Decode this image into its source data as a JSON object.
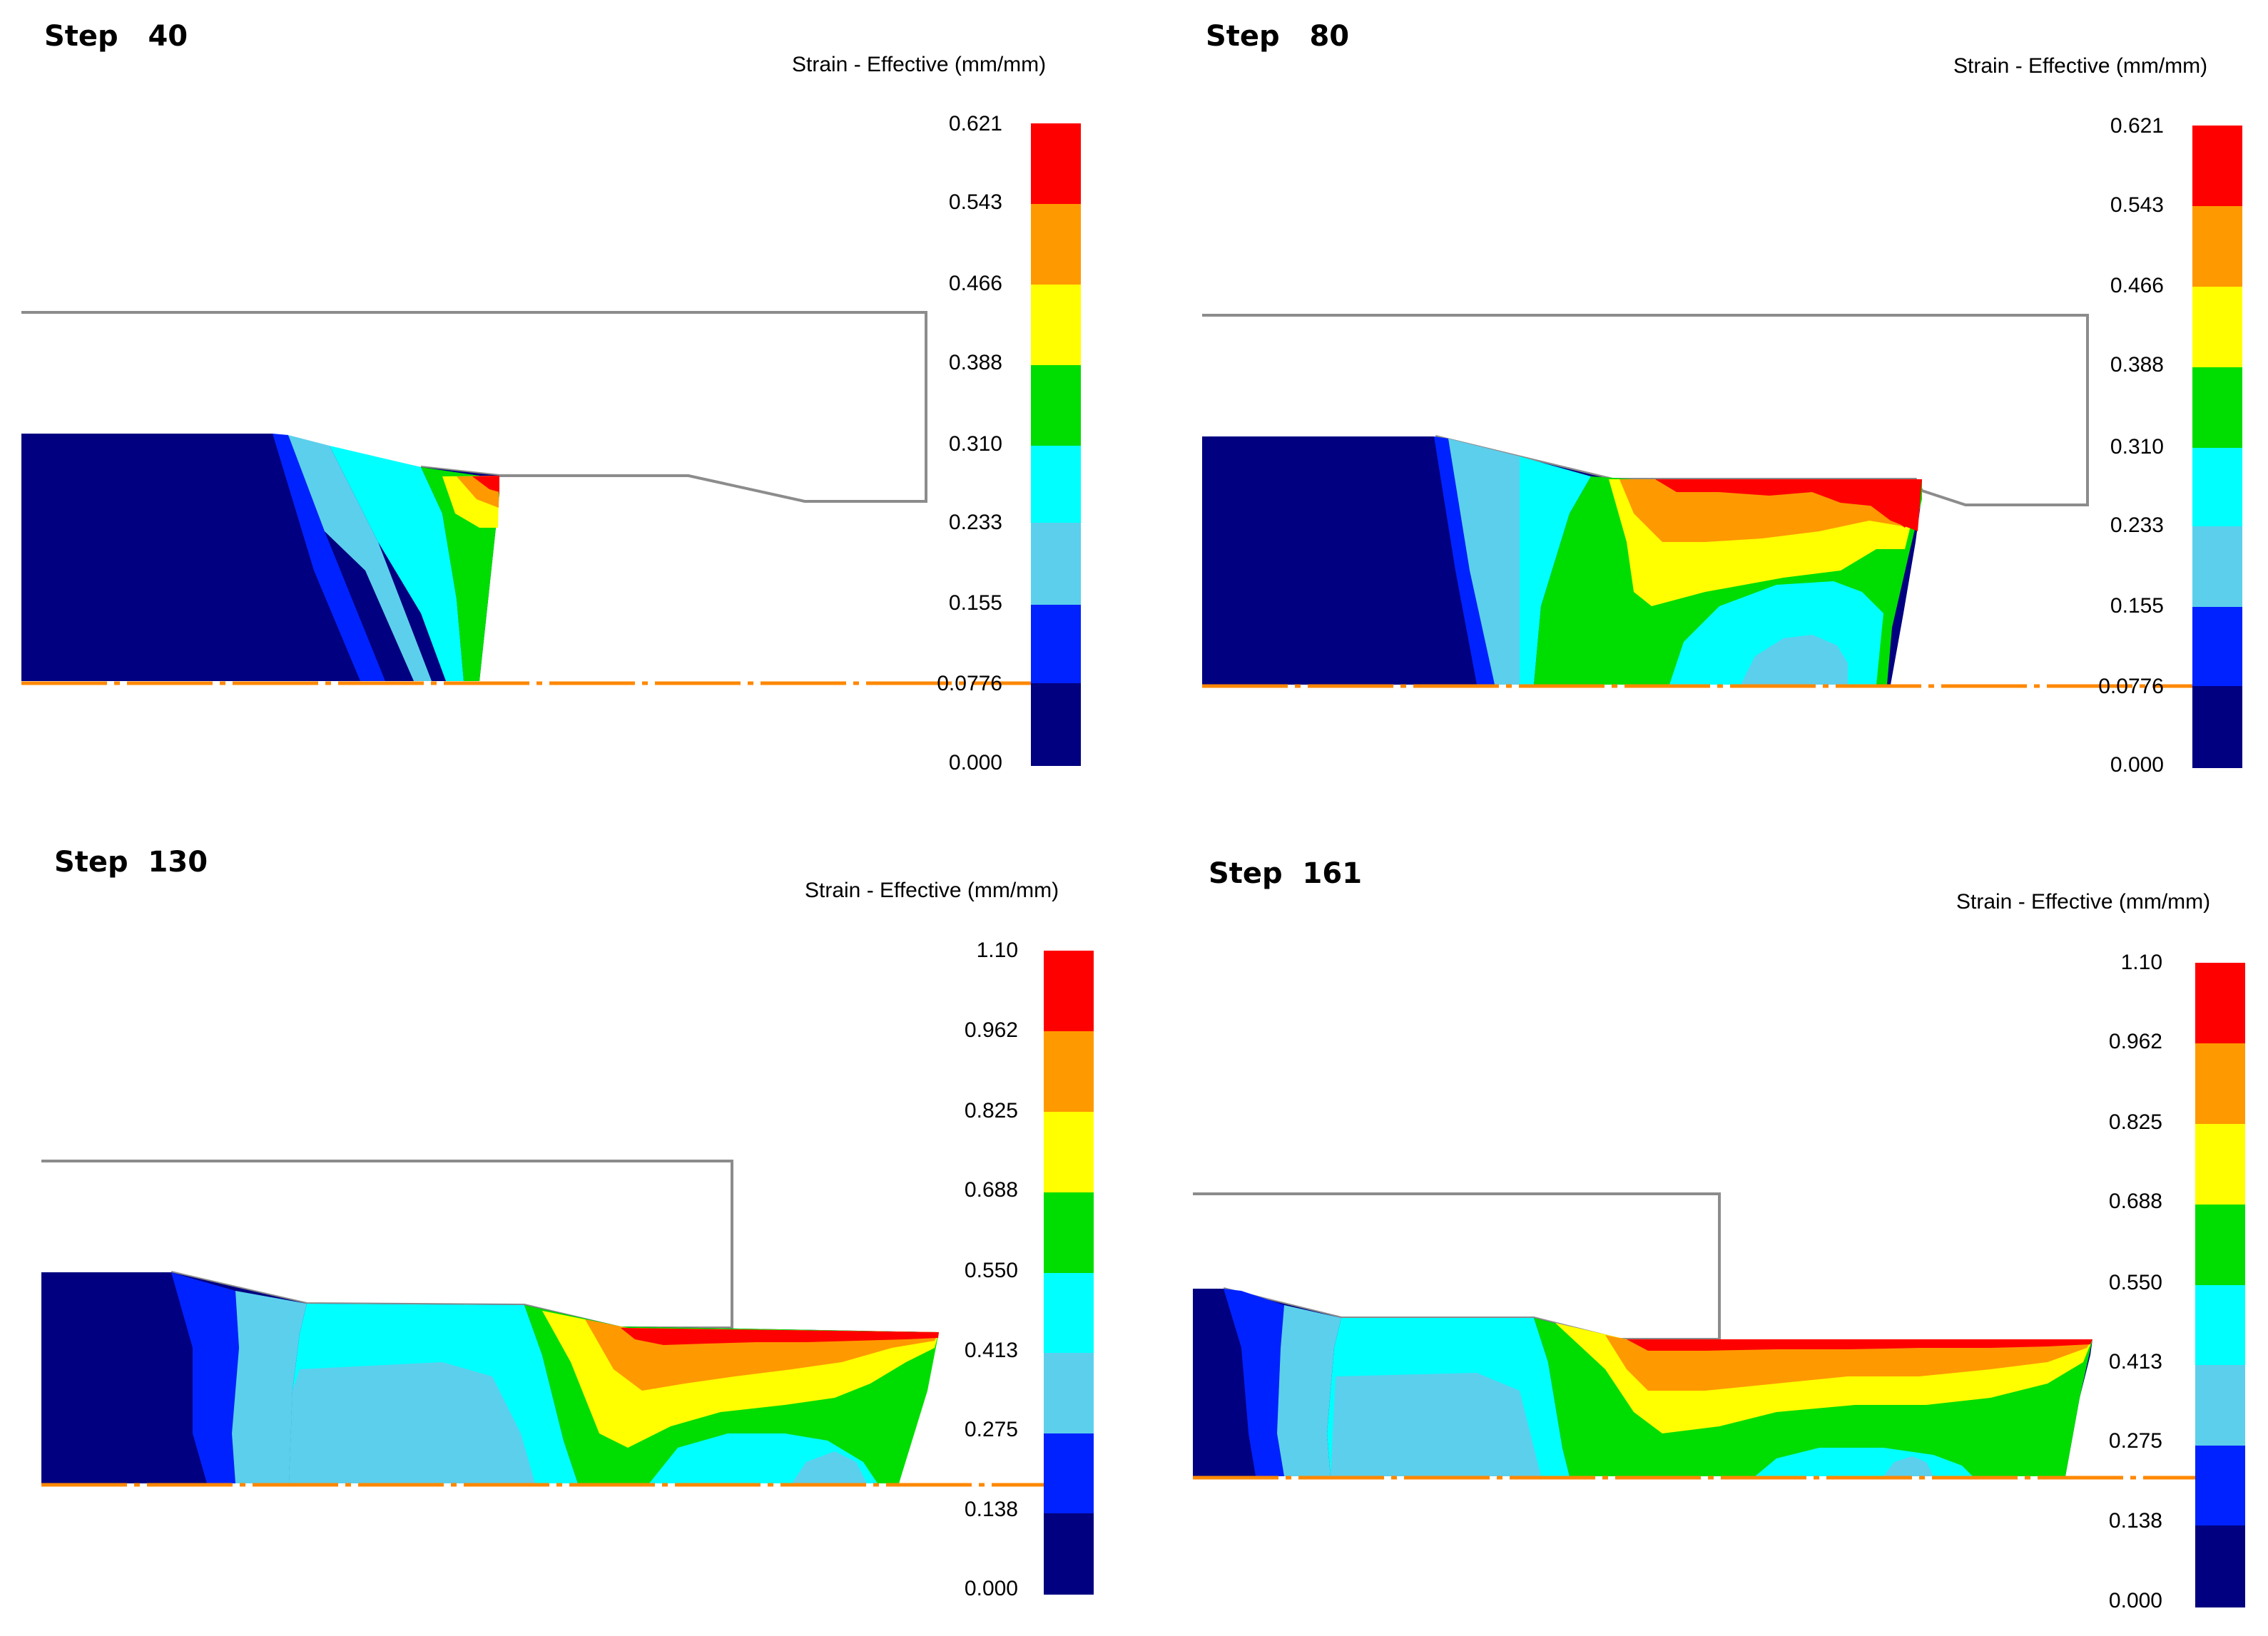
{
  "legend_colors": [
    "#ff0000",
    "#ff9900",
    "#ffff00",
    "#00dd00",
    "#00ffff",
    "#5ccfec",
    "#0022ff",
    "#000080"
  ],
  "outline_color": "#8c8c8c",
  "axis_color": "#ff8800",
  "panels": [
    {
      "title": "Step   40",
      "legend_title": "Strain - Effective (mm/mm)",
      "ticks": [
        "0.621",
        "0.543",
        "0.466",
        "0.388",
        "0.310",
        "0.233",
        "0.155",
        "0.0776",
        "0.000"
      ]
    },
    {
      "title": "Step   80",
      "legend_title": "Strain - Effective (mm/mm)",
      "ticks": [
        "0.621",
        "0.543",
        "0.466",
        "0.388",
        "0.310",
        "0.233",
        "0.155",
        "0.0776",
        "0.000"
      ]
    },
    {
      "title": "Step  130",
      "legend_title": "Strain - Effective (mm/mm)",
      "ticks": [
        "1.10",
        "0.962",
        "0.825",
        "0.688",
        "0.550",
        "0.413",
        "0.275",
        "0.138",
        "0.000"
      ]
    },
    {
      "title": "Step  161",
      "legend_title": "Strain - Effective (mm/mm)",
      "ticks": [
        "1.10",
        "0.962",
        "0.825",
        "0.688",
        "0.550",
        "0.413",
        "0.275",
        "0.138",
        "0.000"
      ]
    }
  ]
}
